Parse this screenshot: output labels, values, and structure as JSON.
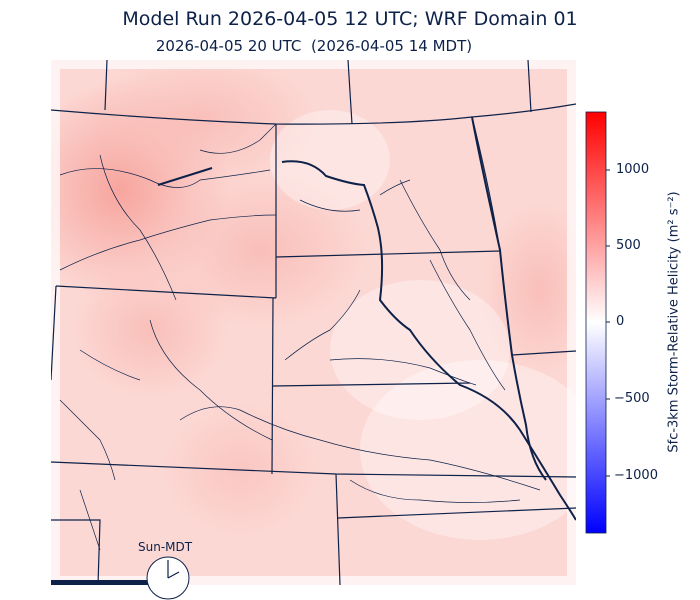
{
  "title": "Model Run 2026-04-05 12 UTC; WRF Domain 01",
  "subtitle": "2026-04-05 20 UTC  (2026-04-05 14 MDT)",
  "colorbar": {
    "label": "Sfc-3km Storm-Relative Helicity (m² s⁻²)",
    "ticks": [
      "1000",
      "500",
      "0",
      "−500",
      "−1000"
    ],
    "range": [
      -1375,
      1375
    ],
    "colors": {
      "high": "#ff0000",
      "mid": "#ffffff",
      "low": "#0000ff"
    }
  },
  "clock": {
    "label": "Sun-MDT"
  },
  "colors": {
    "border": "#0d2149",
    "text": "#0d2149"
  }
}
